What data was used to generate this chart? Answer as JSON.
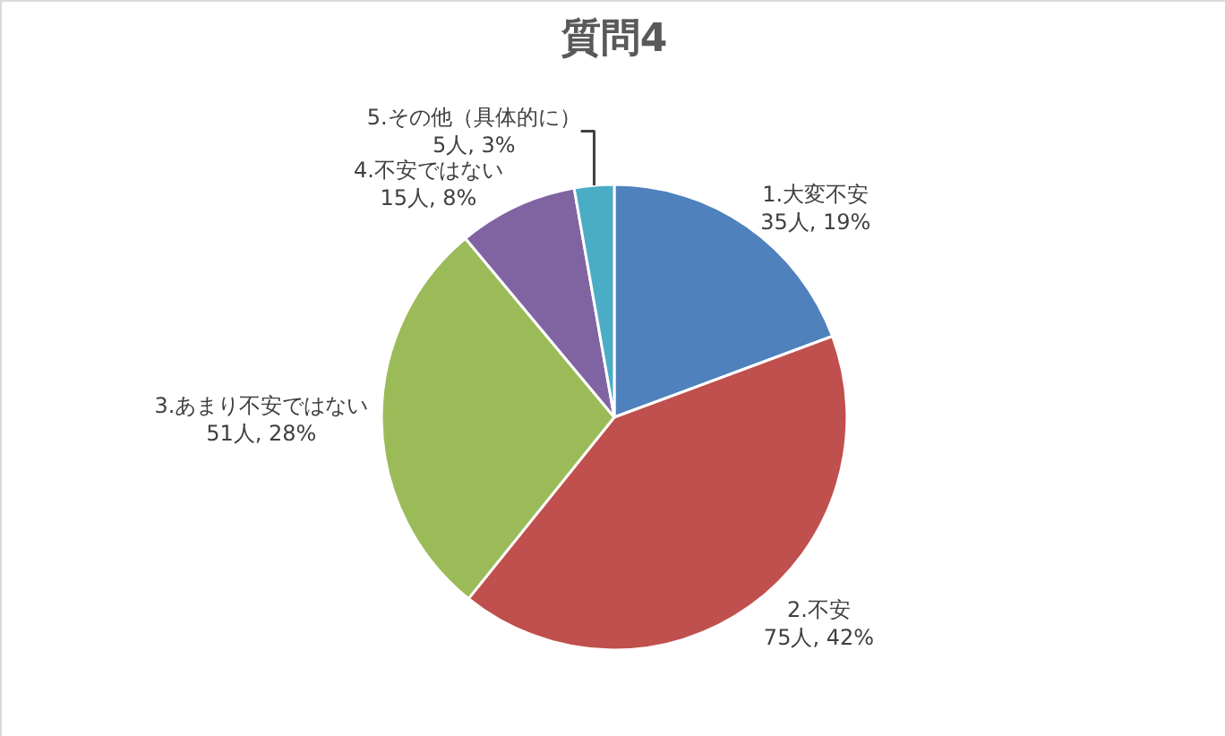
{
  "chart_data": {
    "type": "pie",
    "title": "質問4",
    "categories": [
      "1.大変不安",
      "2.不安",
      "3.あまり不安ではない",
      "4.不安ではない",
      "5.その他（具体的に）"
    ],
    "values": [
      35,
      75,
      51,
      15,
      5
    ],
    "value_labels": [
      "35人, 19%",
      "75人, 42%",
      "51人, 28%",
      "15人, 8%",
      "5人, 3%"
    ],
    "colors": [
      "#4f81bd",
      "#c0504d",
      "#9bbb59",
      "#8064a2",
      "#4bacc6"
    ],
    "legend": false
  }
}
